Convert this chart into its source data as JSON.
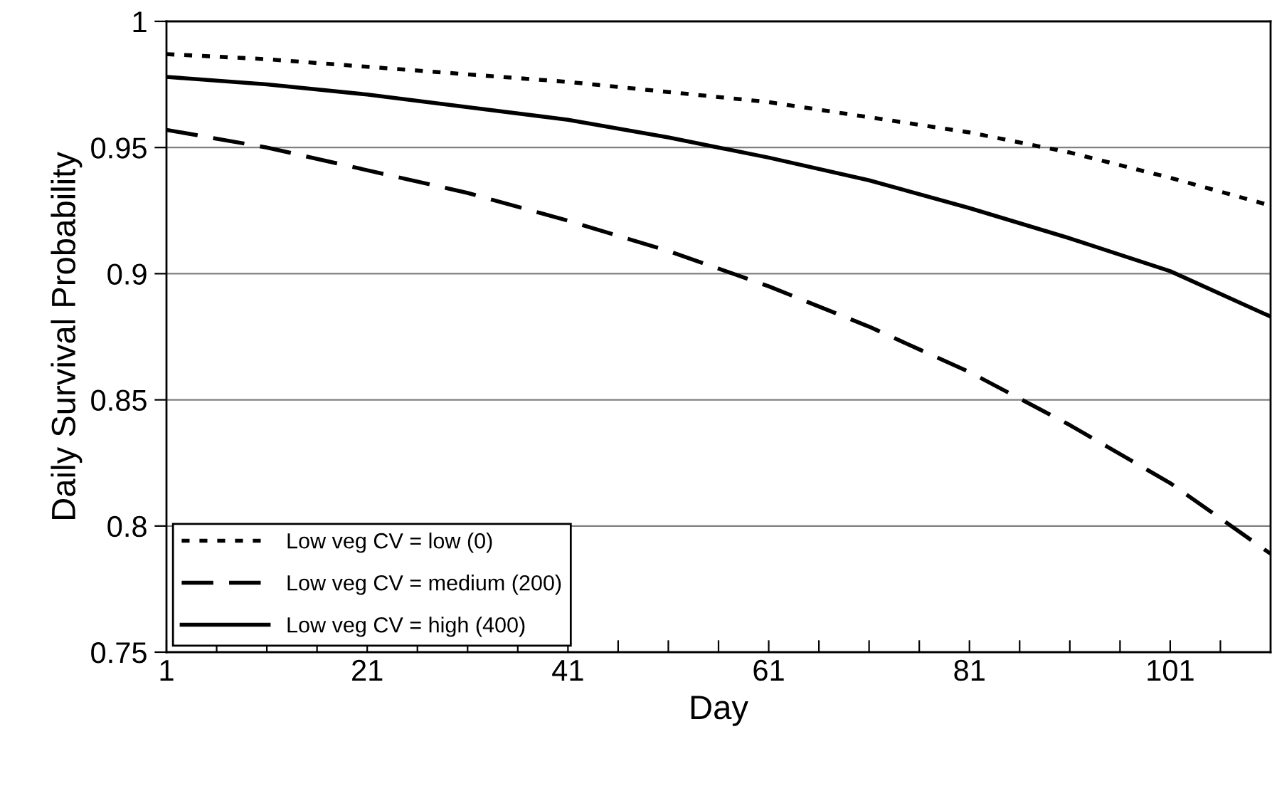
{
  "chart_data": {
    "type": "line",
    "xlabel": "Day",
    "ylabel": "Daily Survival Probability",
    "x": [
      1,
      11,
      21,
      31,
      41,
      51,
      61,
      71,
      81,
      91,
      101,
      111
    ],
    "series": [
      {
        "name": "Low veg CV = low (0)",
        "color": "#000000",
        "line_style": "dotted",
        "values": [
          0.987,
          0.985,
          0.982,
          0.979,
          0.976,
          0.972,
          0.968,
          0.962,
          0.956,
          0.948,
          0.938,
          0.927
        ]
      },
      {
        "name": "Low veg CV = medium (200)",
        "color": "#000000",
        "line_style": "dashed",
        "values": [
          0.957,
          0.95,
          0.941,
          0.932,
          0.921,
          0.909,
          0.895,
          0.879,
          0.861,
          0.84,
          0.817,
          0.789
        ]
      },
      {
        "name": "Low veg CV = high (400)",
        "color": "#000000",
        "line_style": "solid",
        "values": [
          0.978,
          0.975,
          0.971,
          0.966,
          0.961,
          0.954,
          0.946,
          0.937,
          0.926,
          0.914,
          0.901,
          0.883
        ]
      }
    ],
    "xlim": [
      1,
      111
    ],
    "ylim": [
      0.75,
      1
    ],
    "xticks": [
      1,
      {
        "value": 6,
        "label": null
      },
      {
        "value": 11,
        "label": null
      },
      {
        "value": 16,
        "label": null
      },
      21,
      {
        "value": 26,
        "label": null
      },
      {
        "value": 31,
        "label": null
      },
      {
        "value": 36,
        "label": null
      },
      41,
      {
        "value": 46,
        "label": null
      },
      {
        "value": 51,
        "label": null
      },
      {
        "value": 56,
        "label": null
      },
      61,
      {
        "value": 66,
        "label": null
      },
      {
        "value": 71,
        "label": null
      },
      {
        "value": 76,
        "label": null
      },
      81,
      {
        "value": 86,
        "label": null
      },
      {
        "value": 91,
        "label": null
      },
      {
        "value": 96,
        "label": null
      },
      101,
      {
        "value": 106,
        "label": null
      }
    ],
    "yticks": [
      0.75,
      0.8,
      0.85,
      0.9,
      0.95,
      1
    ],
    "grid": "y",
    "legend": "bottom left",
    "marker": "none"
  }
}
